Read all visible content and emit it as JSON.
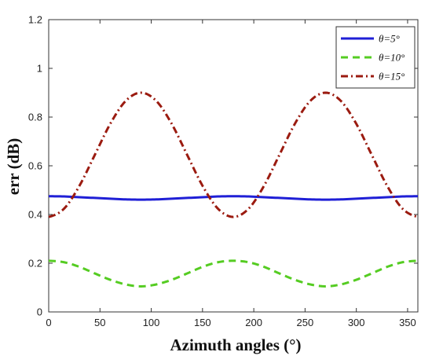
{
  "chart_data": {
    "type": "line",
    "xlabel": "Azimuth angles (°)",
    "ylabel": "err (dB)",
    "xlim": [
      0,
      360
    ],
    "ylim": [
      0,
      1.2
    ],
    "xticks": [
      0,
      50,
      100,
      150,
      200,
      250,
      300,
      350
    ],
    "yticks": [
      0,
      0.2,
      0.4,
      0.6,
      0.8,
      1,
      1.2
    ],
    "ytick_labels": [
      "0",
      "0.2",
      "0.4",
      "0.6",
      "0.8",
      "1",
      "1.2"
    ],
    "grid": false,
    "legend_position": "top-right",
    "x": [
      0,
      15,
      30,
      45,
      60,
      75,
      90,
      105,
      120,
      135,
      150,
      165,
      180,
      195,
      210,
      225,
      240,
      255,
      270,
      285,
      300,
      315,
      330,
      345,
      360
    ],
    "series": [
      {
        "name": "θ=5°",
        "color": "#1f1fd6",
        "dash": "solid",
        "values": [
          0.475,
          0.474,
          0.471,
          0.468,
          0.465,
          0.462,
          0.461,
          0.462,
          0.465,
          0.468,
          0.471,
          0.474,
          0.475,
          0.474,
          0.471,
          0.468,
          0.465,
          0.462,
          0.461,
          0.462,
          0.465,
          0.468,
          0.471,
          0.474,
          0.475
        ]
      },
      {
        "name": "θ=10°",
        "color": "#55cc22",
        "dash": "dashed",
        "values": [
          0.21,
          0.204,
          0.185,
          0.158,
          0.132,
          0.113,
          0.105,
          0.113,
          0.132,
          0.158,
          0.185,
          0.204,
          0.21,
          0.204,
          0.185,
          0.158,
          0.132,
          0.113,
          0.105,
          0.113,
          0.132,
          0.158,
          0.185,
          0.204,
          0.21
        ]
      },
      {
        "name": "θ=15°",
        "color": "#9b1b10",
        "dash": "dashdot",
        "values": [
          0.39,
          0.424,
          0.518,
          0.645,
          0.772,
          0.866,
          0.9,
          0.866,
          0.772,
          0.645,
          0.518,
          0.424,
          0.39,
          0.424,
          0.518,
          0.645,
          0.772,
          0.866,
          0.9,
          0.866,
          0.772,
          0.645,
          0.518,
          0.424,
          0.39
        ]
      }
    ]
  }
}
